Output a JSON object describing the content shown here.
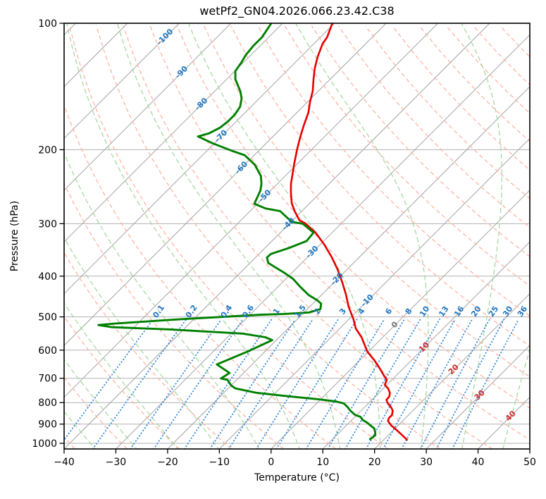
{
  "title": "wetPf2_GN04.2026.066.23.42.C38",
  "axes": {
    "x_label": "Temperature (°C)",
    "y_label": "Pressure (hPa)",
    "x_ticks": [
      {
        "value": -40,
        "label": "−40"
      },
      {
        "value": -30,
        "label": "−30"
      },
      {
        "value": -20,
        "label": "−20"
      },
      {
        "value": -10,
        "label": "−10"
      },
      {
        "value": 0,
        "label": "0"
      },
      {
        "value": 10,
        "label": "10"
      },
      {
        "value": 20,
        "label": "20"
      },
      {
        "value": 30,
        "label": "30"
      },
      {
        "value": 40,
        "label": "40"
      },
      {
        "value": 50,
        "label": "50"
      }
    ],
    "y_ticks": [
      100,
      200,
      300,
      400,
      500,
      600,
      700,
      800,
      900,
      1000
    ],
    "x_range": [
      -40,
      50
    ],
    "p_range": [
      100,
      1030
    ],
    "skew_degrees": 45
  },
  "chart_data": {
    "type": "skewt-log-p",
    "title": "wetPf2_GN04.2026.066.23.42.C38",
    "isobars": [
      100,
      200,
      300,
      400,
      500,
      600,
      700,
      800,
      900,
      1000
    ],
    "isotherms": {
      "start": -130,
      "end": 50,
      "step": 10
    },
    "dry_adiabats": {
      "start": -40,
      "end": 190,
      "step": 10
    },
    "moist_adiabats": {
      "values": [
        -60,
        -52,
        -44,
        -36,
        -28,
        -20,
        -12,
        -4,
        4,
        12,
        20,
        28,
        36,
        44
      ]
    },
    "mixing_ratio_lines": {
      "values": [
        0.1,
        0.2,
        0.4,
        0.6,
        1,
        1.5,
        2,
        3,
        4,
        6,
        8,
        10,
        13,
        16,
        20,
        25,
        30,
        36
      ],
      "label_pressure": 486,
      "top_pressure": 495
    },
    "isotherm_labels": [
      {
        "t": -100,
        "p": 108
      },
      {
        "t": -90,
        "p": 131
      },
      {
        "t": -80,
        "p": 156
      },
      {
        "t": -70,
        "p": 186
      },
      {
        "t": -60,
        "p": 221
      },
      {
        "t": -50,
        "p": 258
      },
      {
        "t": -40,
        "p": 301
      },
      {
        "t": -30,
        "p": 351
      },
      {
        "t": -20,
        "p": 407
      },
      {
        "t": -10,
        "p": 458
      },
      {
        "t": 0,
        "p": 523
      },
      {
        "t": 10,
        "p": 591
      },
      {
        "t": 20,
        "p": 668
      },
      {
        "t": 30,
        "p": 769
      },
      {
        "t": 40,
        "p": 862
      }
    ],
    "temperature_profile": {
      "name": "temperature",
      "points": [
        [
          100,
          -70.4
        ],
        [
          108,
          -68.7
        ],
        [
          112,
          -68.3
        ],
        [
          120,
          -66.8
        ],
        [
          128,
          -65.1
        ],
        [
          136,
          -63.2
        ],
        [
          145,
          -61.1
        ],
        [
          154,
          -59.5
        ],
        [
          163,
          -57.8
        ],
        [
          175,
          -56.2
        ],
        [
          186,
          -54.7
        ],
        [
          200,
          -52.8
        ],
        [
          217,
          -50.5
        ],
        [
          229,
          -48.9
        ],
        [
          241,
          -47.4
        ],
        [
          253,
          -45.7
        ],
        [
          268,
          -43.5
        ],
        [
          280,
          -41.4
        ],
        [
          295,
          -38.6
        ],
        [
          299,
          -37.1
        ],
        [
          315,
          -33.2
        ],
        [
          337,
          -29.1
        ],
        [
          360,
          -25.4
        ],
        [
          385,
          -21.9
        ],
        [
          414,
          -18.4
        ],
        [
          444,
          -15.2
        ],
        [
          473,
          -12.5
        ],
        [
          507,
          -9.1
        ],
        [
          533,
          -6.9
        ],
        [
          559,
          -4.1
        ],
        [
          605,
          -0.2
        ],
        [
          634,
          2.8
        ],
        [
          664,
          5.5
        ],
        [
          693,
          7.9
        ],
        [
          706,
          9.0
        ],
        [
          726,
          9.6
        ],
        [
          740,
          10.9
        ],
        [
          758,
          12.1
        ],
        [
          773,
          12.7
        ],
        [
          788,
          12.8
        ],
        [
          804,
          13.8
        ],
        [
          820,
          15.1
        ],
        [
          836,
          16.1
        ],
        [
          856,
          16.8
        ],
        [
          871,
          16.8
        ],
        [
          885,
          17.2
        ],
        [
          907,
          18.7
        ],
        [
          926,
          20.3
        ],
        [
          954,
          22.5
        ],
        [
          974,
          24.0
        ],
        [
          984,
          24.7
        ]
      ]
    },
    "dewpoint_profile": {
      "name": "dewpoint",
      "points": [
        [
          100,
          -82.2
        ],
        [
          108,
          -81.3
        ],
        [
          113,
          -81.3
        ],
        [
          119,
          -81.0
        ],
        [
          124,
          -80.4
        ],
        [
          130,
          -79.9
        ],
        [
          136,
          -78.3
        ],
        [
          145,
          -75.1
        ],
        [
          151,
          -73.4
        ],
        [
          158,
          -72.1
        ],
        [
          165,
          -71.6
        ],
        [
          171,
          -71.6
        ],
        [
          177,
          -71.9
        ],
        [
          183,
          -73.0
        ],
        [
          186,
          -74.5
        ],
        [
          193,
          -70.4
        ],
        [
          201,
          -65.3
        ],
        [
          206,
          -61.9
        ],
        [
          217,
          -58.1
        ],
        [
          231,
          -54.7
        ],
        [
          241,
          -53.1
        ],
        [
          250,
          -52.0
        ],
        [
          269,
          -50.6
        ],
        [
          276,
          -47.5
        ],
        [
          280,
          -44.2
        ],
        [
          297,
          -39.9
        ],
        [
          300,
          -37.4
        ],
        [
          315,
          -33.6
        ],
        [
          330,
          -33.3
        ],
        [
          343,
          -35.4
        ],
        [
          354,
          -37.7
        ],
        [
          361,
          -37.8
        ],
        [
          372,
          -36.5
        ],
        [
          381,
          -34.3
        ],
        [
          393,
          -31.4
        ],
        [
          406,
          -28.6
        ],
        [
          424,
          -25.7
        ],
        [
          444,
          -22.4
        ],
        [
          456,
          -19.9
        ],
        [
          465,
          -18.4
        ],
        [
          479,
          -17.5
        ],
        [
          488,
          -19.0
        ],
        [
          492,
          -23.4
        ],
        [
          494,
          -27.8
        ],
        [
          507,
          -43.1
        ],
        [
          519,
          -54.6
        ],
        [
          523,
          -57.3
        ],
        [
          529,
          -54.3
        ],
        [
          536,
          -42.2
        ],
        [
          548,
          -27.8
        ],
        [
          559,
          -22.7
        ],
        [
          568,
          -20.8
        ],
        [
          605,
          -23.4
        ],
        [
          649,
          -26.8
        ],
        [
          680,
          -22.7
        ],
        [
          701,
          -23.3
        ],
        [
          706,
          -21.8
        ],
        [
          729,
          -19.9
        ],
        [
          740,
          -18.6
        ],
        [
          758,
          -13.7
        ],
        [
          773,
          -6.6
        ],
        [
          785,
          -0.7
        ],
        [
          795,
          3.4
        ],
        [
          804,
          5.3
        ],
        [
          820,
          6.7
        ],
        [
          836,
          7.9
        ],
        [
          856,
          9.7
        ],
        [
          865,
          11.1
        ],
        [
          880,
          12.1
        ],
        [
          892,
          13.4
        ],
        [
          907,
          14.7
        ],
        [
          922,
          16.0
        ],
        [
          941,
          16.9
        ],
        [
          957,
          17.5
        ],
        [
          980,
          17.2
        ]
      ]
    },
    "colors": {
      "temperature": "#e60000",
      "dewpoint": "#008000",
      "isobar": "#b2b2b2",
      "isotherm": "#a3a3a3",
      "dry_adiabat": "#ffb4a4",
      "moist_adiabat": "#a8d8a2",
      "mixing_line": "#3f8ede",
      "label_blue": "#2277c0",
      "label_red": "#cf2b2b",
      "label_gray": "#757575",
      "frame": "#000000"
    }
  }
}
